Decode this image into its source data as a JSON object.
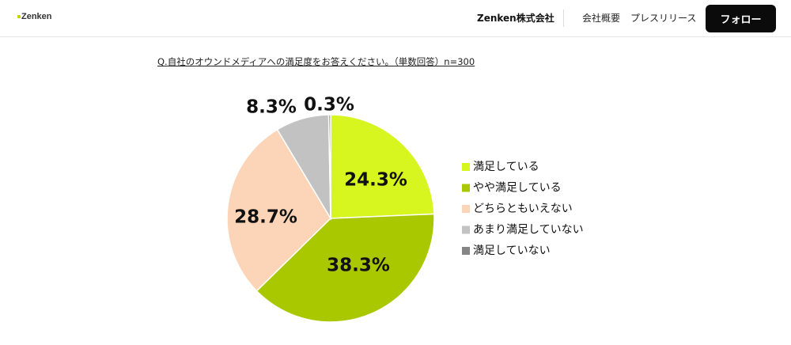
{
  "header": {
    "logo_text": "Zenken",
    "company_name": "Zenken株式会社",
    "nav": [
      "会社概要",
      "プレスリリース"
    ],
    "follow_label": "フォロー"
  },
  "colors": {
    "satisfied": "#d7f51f",
    "somewhat_satisfied": "#a9c800",
    "neutral": "#fcd5b8",
    "not_very_satisfied": "#c2c2c2",
    "not_satisfied": "#858585"
  },
  "chart_data": {
    "type": "pie",
    "title": "Q.自社のオウンドメディアへの満足度をお答えください。（単数回答）n=300",
    "legend_position": "right",
    "slices": [
      {
        "label": "満足している",
        "value": 24.3,
        "display": "24.3%",
        "color": "#d7f51f"
      },
      {
        "label": "やや満足している",
        "value": 38.3,
        "display": "38.3%",
        "color": "#a9c800"
      },
      {
        "label": "どちらともいえない",
        "value": 28.7,
        "display": "28.7%",
        "color": "#fcd5b8"
      },
      {
        "label": "あまり満足していない",
        "value": 8.3,
        "display": "8.3%",
        "color": "#c2c2c2"
      },
      {
        "label": "満足していない",
        "value": 0.3,
        "display": "0.3%",
        "color": "#858585"
      }
    ]
  }
}
